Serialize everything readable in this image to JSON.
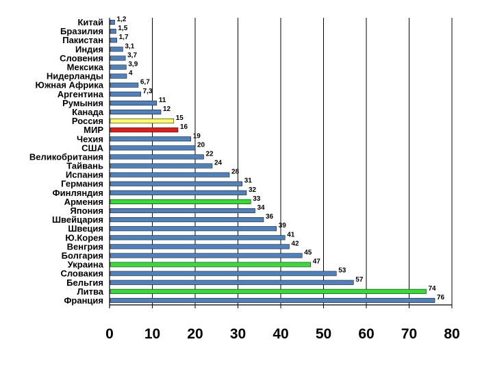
{
  "chart_data": {
    "type": "bar",
    "orientation": "horizontal",
    "title": "",
    "xlabel": "",
    "ylabel": "",
    "xlim": [
      0,
      80
    ],
    "xticks": [
      0,
      10,
      20,
      30,
      40,
      50,
      60,
      70,
      80
    ],
    "grid": true,
    "categories": [
      "Китай",
      "Бразилия",
      "Пакистан",
      "Индия",
      "Словения",
      "Мексика",
      "Нидерланды",
      "Южная Африка",
      "Аргентина",
      "Румыния",
      "Канада",
      "Россия",
      "МИР",
      "Чехия",
      "США",
      "Великобритания",
      "Тайвань",
      "Испания",
      "Германия",
      "Финляндия",
      "Армения",
      "Япония",
      "Швейцария",
      "Швеция",
      "Ю.Корея",
      "Венгрия",
      "Болгария",
      "Украина",
      "Словакия",
      "Бельгия",
      "Литва",
      "Франция"
    ],
    "values": [
      1.2,
      1.5,
      1.7,
      3.1,
      3.7,
      3.9,
      4,
      6.7,
      7.3,
      11,
      12,
      15,
      16,
      19,
      20,
      22,
      24,
      28,
      31,
      32,
      33,
      34,
      36,
      39,
      41,
      42,
      45,
      47,
      53,
      57,
      74,
      76
    ],
    "value_labels": [
      "1,2",
      "1,5",
      "1,7",
      "3,1",
      "3,7",
      "3,9",
      "4",
      "6,7",
      "7,3",
      "11",
      "12",
      "15",
      "16",
      "19",
      "20",
      "22",
      "24",
      "28",
      "31",
      "32",
      "33",
      "34",
      "36",
      "39",
      "41",
      "42",
      "45",
      "47",
      "53",
      "57",
      "74",
      "76"
    ],
    "bar_colors": [
      "#4f81bd",
      "#4f81bd",
      "#4f81bd",
      "#4f81bd",
      "#4f81bd",
      "#4f81bd",
      "#4f81bd",
      "#4f81bd",
      "#4f81bd",
      "#4f81bd",
      "#4f81bd",
      "#ffff66",
      "#e31a1a",
      "#4f81bd",
      "#4f81bd",
      "#4f81bd",
      "#4f81bd",
      "#4f81bd",
      "#4f81bd",
      "#4f81bd",
      "#33dd33",
      "#4f81bd",
      "#4f81bd",
      "#4f81bd",
      "#4f81bd",
      "#4f81bd",
      "#4f81bd",
      "#33dd33",
      "#4f81bd",
      "#4f81bd",
      "#33dd33",
      "#4f81bd"
    ]
  }
}
